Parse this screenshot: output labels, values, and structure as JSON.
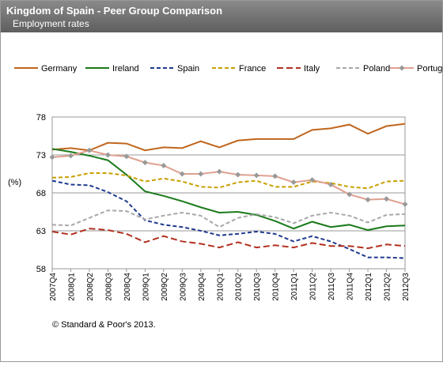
{
  "chart_data": {
    "type": "line",
    "title": "Kingdom of Spain - Peer Group Comparison",
    "subtitle": "Employment rates",
    "y_label": "(%)",
    "footnote": "© Standard & Poor's 2013.",
    "categories": [
      "2007Q4",
      "2008Q1",
      "2008Q2",
      "2008Q3",
      "2008Q4",
      "2009Q1",
      "2009Q2",
      "2009Q3",
      "2009Q4",
      "2010Q1",
      "2010Q2",
      "2010Q3",
      "2010Q4",
      "2011Q1",
      "2011Q2",
      "2011Q3",
      "2011Q4",
      "2012Q1",
      "2012Q2",
      "2012Q3"
    ],
    "ylim": [
      58,
      78
    ],
    "yticks": [
      58,
      63,
      68,
      73,
      78
    ],
    "grid": true,
    "series": [
      {
        "name": "Germany",
        "color": "#c0661e",
        "dashed": false,
        "values": [
          73.7,
          73.9,
          73.6,
          74.6,
          74.5,
          73.6,
          74.0,
          73.9,
          74.8,
          74.0,
          74.9,
          75.1,
          75.1,
          75.1,
          76.3,
          76.5,
          77.0,
          75.8,
          76.8,
          77.1
        ]
      },
      {
        "name": "Ireland",
        "color": "#1a7a1a",
        "dashed": false,
        "values": [
          73.8,
          73.4,
          72.9,
          72.3,
          70.4,
          68.2,
          67.6,
          66.9,
          66.1,
          65.4,
          65.5,
          65.1,
          64.3,
          63.3,
          64.2,
          63.5,
          63.8,
          63.1,
          63.6,
          63.7
        ]
      },
      {
        "name": "Spain",
        "color": "#1f3b8f",
        "dashed": true,
        "values": [
          69.6,
          69.1,
          69.0,
          68.1,
          66.9,
          64.4,
          63.8,
          63.5,
          63.0,
          62.4,
          62.6,
          62.9,
          62.6,
          61.6,
          62.3,
          61.6,
          60.6,
          59.5,
          59.5,
          59.4
        ]
      },
      {
        "name": "France",
        "color": "#c8a000",
        "dashed": true,
        "values": [
          70.0,
          70.1,
          70.6,
          70.6,
          70.3,
          69.5,
          69.9,
          69.5,
          68.8,
          68.7,
          69.4,
          69.6,
          68.8,
          68.8,
          69.5,
          69.3,
          68.8,
          68.6,
          69.5,
          69.6
        ]
      },
      {
        "name": "Italy",
        "color": "#b23020",
        "dashed": true,
        "values": [
          62.9,
          62.5,
          63.3,
          63.1,
          62.6,
          61.5,
          62.3,
          61.6,
          61.3,
          60.8,
          61.5,
          60.8,
          61.1,
          60.8,
          61.4,
          61.0,
          61.0,
          60.7,
          61.2,
          61.0
        ]
      },
      {
        "name": "Poland",
        "color": "#a8a8a8",
        "dashed": true,
        "values": [
          63.8,
          63.7,
          64.7,
          65.7,
          65.6,
          64.5,
          65.0,
          65.4,
          65.0,
          63.5,
          64.7,
          65.2,
          64.8,
          64.0,
          65.0,
          65.4,
          65.0,
          64.1,
          65.1,
          65.2
        ]
      },
      {
        "name": "Portugal",
        "color": "#e0a090",
        "dashed": false,
        "marker": "diamond",
        "marker_color": "#999999",
        "values": [
          72.7,
          72.9,
          73.6,
          73.0,
          72.8,
          72.0,
          71.6,
          70.5,
          70.5,
          70.8,
          70.4,
          70.3,
          70.2,
          69.4,
          69.7,
          69.1,
          67.8,
          67.1,
          67.2,
          66.5
        ]
      }
    ]
  }
}
